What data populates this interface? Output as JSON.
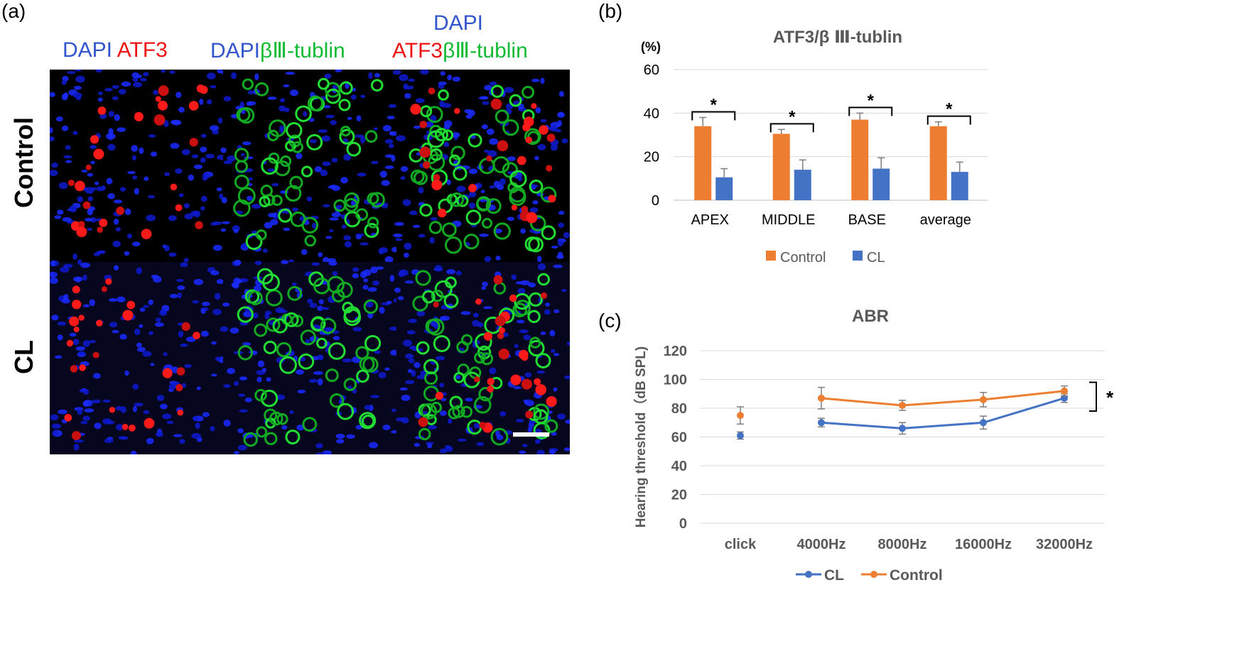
{
  "panel_a": {
    "letter": "(a)",
    "columns": [
      {
        "parts": [
          {
            "text": "DAPI",
            "color": "#3355cc"
          },
          {
            "text": " ATF3",
            "color": "#ee1111"
          }
        ]
      },
      {
        "parts": [
          {
            "text": "DAPI",
            "color": "#3355cc"
          },
          {
            "text": "βⅢ-tublin",
            "color": "#11bb33"
          }
        ]
      },
      {
        "top": "DAPI",
        "parts": [
          {
            "text": "ATF3",
            "color": "#ee1111"
          },
          {
            "text": "βⅢ-tublin",
            "color": "#11bb33"
          }
        ]
      }
    ],
    "rows": [
      "Control",
      "CL"
    ]
  },
  "panel_b": {
    "letter": "(b)",
    "chart_data": {
      "type": "bar",
      "title": "ATF3/β Ⅲ-tublin",
      "ylabel": "(%)",
      "categories": [
        "APEX",
        "MIDDLE",
        "BASE",
        "average"
      ],
      "series": [
        {
          "name": "Control",
          "color": "#ed7d31",
          "values": [
            34,
            30.5,
            37,
            34
          ],
          "errors": [
            4,
            2,
            3,
            2
          ]
        },
        {
          "name": "CL",
          "color": "#4472c4",
          "values": [
            10.5,
            14,
            14.5,
            13
          ],
          "errors": [
            4,
            4.5,
            5,
            4.5
          ]
        }
      ],
      "yticks": [
        0,
        20,
        40,
        60
      ],
      "ylim": [
        0,
        60
      ],
      "significance": [
        "*",
        "*",
        "*",
        "*"
      ],
      "grid": true,
      "legend": "bottom"
    }
  },
  "panel_c": {
    "letter": "(c)",
    "chart_data": {
      "type": "line",
      "title": "ABR",
      "ylabel": "Hearing threshold（dB SPL)",
      "categories": [
        "click",
        "4000Hz",
        "8000Hz",
        "16000Hz",
        "32000Hz"
      ],
      "series": [
        {
          "name": "CL",
          "color": "#4472c4",
          "values": [
            61,
            70,
            66,
            70,
            87
          ],
          "errors": [
            2.5,
            3,
            4,
            4.5,
            3
          ]
        },
        {
          "name": "Control",
          "color": "#ed7d31",
          "values": [
            75,
            87,
            82,
            86,
            92
          ],
          "errors": [
            6,
            7.5,
            3.5,
            5,
            3.5
          ]
        }
      ],
      "yticks": [
        0,
        20,
        40,
        60,
        80,
        100,
        120
      ],
      "ylim": [
        0,
        120
      ],
      "significance": "*",
      "grid": true,
      "legend": "bottom"
    }
  }
}
